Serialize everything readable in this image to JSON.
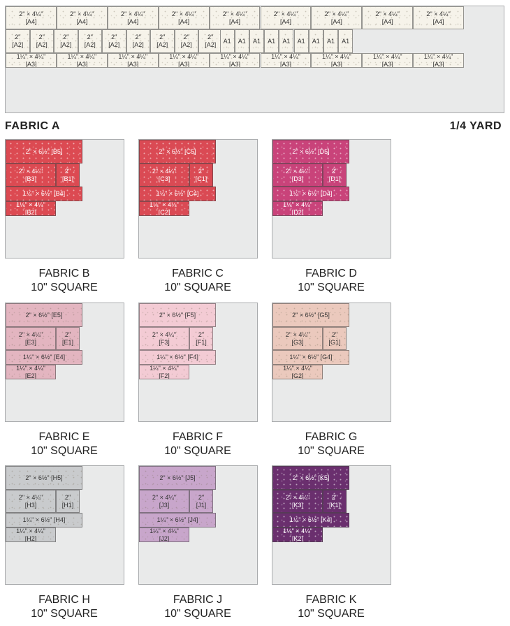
{
  "fabric_a": {
    "name": "FABRIC A",
    "amount": "1/4 YARD",
    "row1_label": "2\" × 4¼\"\n[A4]",
    "row2_label": "2\"\n[A2]",
    "row2_small_label": "A1",
    "row3_label": "1¼\" × 4¼\"\n[A3]",
    "color": "#f6f3ea"
  },
  "fabrics": [
    {
      "name": "FABRIC B",
      "size": "10\" SQUARE",
      "color": "#dc4a52",
      "text_color": "#ffffff",
      "labels": [
        "2\" × 6½\" [B5]",
        "2\" × 4¼\"\n[B3]",
        "2\"\n[B1]",
        "1¼\" × 6½\" [B4]",
        "1¼\" × 4¼\"\n[B2]"
      ]
    },
    {
      "name": "FABRIC C",
      "size": "10\" SQUARE",
      "color": "#da4a54",
      "text_color": "#ffffff",
      "labels": [
        "2\" × 6½\" [C5]",
        "2\" × 4¼\"\n[C3]",
        "2\"\n[C1]",
        "1¼\" × 6½\" [C4]",
        "1¼\" × 4¼\"\n[C2]"
      ]
    },
    {
      "name": "FABRIC D",
      "size": "10\" SQUARE",
      "color": "#c9437a",
      "text_color": "#ffffff",
      "labels": [
        "2\" × 6½\" [D5]",
        "2\" × 4¼\"\n[D3]",
        "2\"\n[D1]",
        "1¼\" × 6½\" [D4]",
        "1¼\" × 4¼\"\n[D2]"
      ]
    },
    {
      "name": "FABRIC E",
      "size": "10\" SQUARE",
      "color": "#e3b5c0",
      "text_color": "#333333",
      "labels": [
        "2\" × 6½\" [E5]",
        "2\" × 4¼\"\n[E3]",
        "2\"\n[E1]",
        "1¼\" × 6½\" [E4]",
        "1¼\" × 4¼\"\n[E2]"
      ]
    },
    {
      "name": "FABRIC F",
      "size": "10\" SQUARE",
      "color": "#f3cbd4",
      "text_color": "#333333",
      "labels": [
        "2\" × 6½\" [F5]",
        "2\" × 4¼\"\n[F3]",
        "2\"\n[F1]",
        "1¼\" × 6½\" [F4]",
        "1¼\" × 4¼\"\n[F2]"
      ]
    },
    {
      "name": "FABRIC G",
      "size": "10\" SQUARE",
      "color": "#ebc9bd",
      "text_color": "#333333",
      "labels": [
        "2\" × 6½\" [G5]",
        "2\" × 4¼\"\n[G3]",
        "2\"\n[G1]",
        "1¼\" × 6½\" [G4]",
        "1¼\" × 4¼\"\n[G2]"
      ]
    },
    {
      "name": "FABRIC H",
      "size": "10\" SQUARE",
      "color": "#c9cbcd",
      "text_color": "#333333",
      "labels": [
        "2\" × 6½\" [H5]",
        "2\" × 4¼\"\n[H3]",
        "2\"\n[H1]",
        "1¼\" × 6½\" [H4]",
        "1¼\" × 4¼\"\n[H2]"
      ]
    },
    {
      "name": "FABRIC J",
      "size": "10\" SQUARE",
      "color": "#c8a6cb",
      "text_color": "#333333",
      "labels": [
        "2\" × 6½\" [J5]",
        "2\" × 4¼\"\n[J3]",
        "2\"\n[J1]",
        "1¼\" × 6½\" [J4]",
        "1¼\" × 4¼\"\n[J2]"
      ]
    },
    {
      "name": "FABRIC K",
      "size": "10\" SQUARE",
      "color": "#6a2f6e",
      "text_color": "#ffffff",
      "labels": [
        "2\" × 6½\" [K5]",
        "2\" × 4¼\"\n[K3]",
        "2\"\n[K1]",
        "1¼\" × 6½\" [K4]",
        "1¼\" × 4¼\"\n[K2]"
      ]
    }
  ]
}
